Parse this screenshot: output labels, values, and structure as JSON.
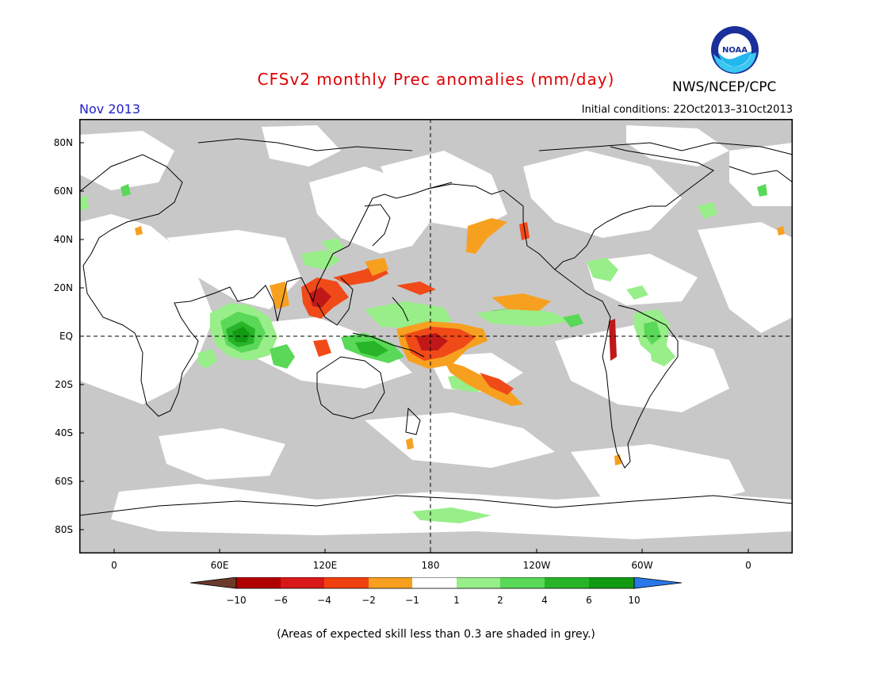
{
  "title": "CFSv2 monthly Prec anomalies (mm/day)",
  "month": "Nov 2013",
  "initial_conditions": "Initial conditions: 22Oct2013–31Oct2013",
  "agency": "NWS/NCEP/CPC",
  "logo_text": "NOAA",
  "lat_labels": [
    "80N",
    "60N",
    "40N",
    "20N",
    "EQ",
    "20S",
    "40S",
    "60S",
    "80S"
  ],
  "lon_labels": [
    "0",
    "60E",
    "120E",
    "180",
    "120W",
    "60W",
    "0"
  ],
  "colorbar": {
    "labels": [
      "−10",
      "−6",
      "−4",
      "−2",
      "−1",
      "1",
      "2",
      "4",
      "6",
      "10"
    ],
    "colors": [
      "#6b3a2a",
      "#b00000",
      "#d81818",
      "#f04010",
      "#f7a020",
      "#ffffff",
      "#98ee88",
      "#5ad858",
      "#28b428",
      "#129a12",
      "#2878e8"
    ]
  },
  "colors": {
    "low_skill_grey": "#c8c8c8",
    "dry_strong": "#c01818",
    "dry": "#f04a18",
    "dry_weak": "#f7a020",
    "wet_weak": "#98ee88",
    "wet": "#5ad858",
    "wet_strong": "#28b428",
    "wet_max": "#129a12"
  },
  "footnote": "(Areas of expected skill less than 0.3 are shaded in grey.)"
}
